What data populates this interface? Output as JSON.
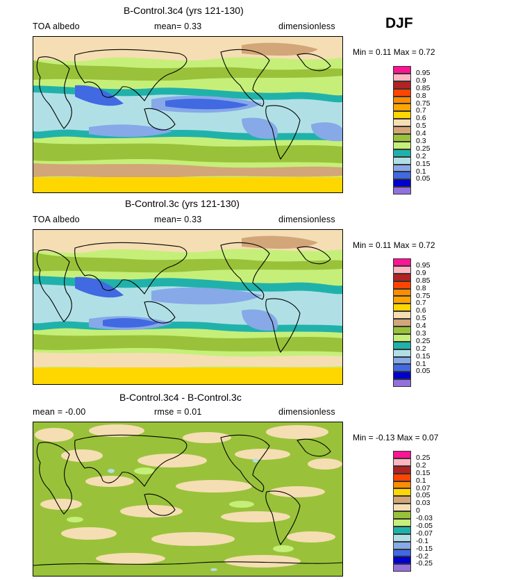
{
  "season": "DJF",
  "panels": [
    {
      "id": "p1",
      "title": "B-Control.3c4 (yrs 121-130)",
      "header_left": "TOA albedo",
      "header_mid": "mean=    0.33",
      "header_right": "dimensionless",
      "min_max": "Min =    0.11  Max =    0.72",
      "legend": [
        "0.95",
        "0.9",
        "0.85",
        "0.8",
        "0.75",
        "0.7",
        "0.6",
        "0.5",
        "0.4",
        "0.3",
        "0.25",
        "0.2",
        "0.15",
        "0.1",
        "0.05"
      ],
      "colors": [
        "#ff1493",
        "#ffb6c1",
        "#b22222",
        "#ff4500",
        "#ff8c00",
        "#ffa500",
        "#ffd700",
        "#f5deb3",
        "#d2a679",
        "#99c23a",
        "#c6ef79",
        "#20b2aa",
        "#b0e0e6",
        "#87a9e8",
        "#4169e1",
        "#0000cd",
        "#9370db"
      ]
    },
    {
      "id": "p2",
      "title": "B-Control.3c (yrs 121-130)",
      "header_left": "TOA albedo",
      "header_mid": "mean=    0.33",
      "header_right": "dimensionless",
      "min_max": "Min =    0.11  Max =    0.72",
      "legend": [
        "0.95",
        "0.9",
        "0.85",
        "0.8",
        "0.75",
        "0.7",
        "0.6",
        "0.5",
        "0.4",
        "0.3",
        "0.25",
        "0.2",
        "0.15",
        "0.1",
        "0.05"
      ],
      "colors": [
        "#ff1493",
        "#ffb6c1",
        "#b22222",
        "#ff4500",
        "#ff8c00",
        "#ffa500",
        "#ffd700",
        "#f5deb3",
        "#d2a679",
        "#99c23a",
        "#c6ef79",
        "#20b2aa",
        "#b0e0e6",
        "#87a9e8",
        "#4169e1",
        "#0000cd",
        "#9370db"
      ]
    },
    {
      "id": "p3",
      "title": "B-Control.3c4 - B-Control.3c",
      "header_left": "mean =   -0.00",
      "header_mid": "rmse =    0.01",
      "header_right": "dimensionless",
      "min_max": "Min =   -0.13  Max =    0.07",
      "legend": [
        "0.25",
        "0.2",
        "0.15",
        "0.1",
        "0.07",
        "0.05",
        "0.03",
        "0",
        "-0.03",
        "-0.05",
        "-0.07",
        "-0.1",
        "-0.15",
        "-0.2",
        "-0.25"
      ],
      "colors": [
        "#ff1493",
        "#ffb6c1",
        "#b22222",
        "#ff4500",
        "#ff8c00",
        "#ffd700",
        "#d2a679",
        "#f5deb3",
        "#99c23a",
        "#c6ef79",
        "#20b2aa",
        "#b0e0e6",
        "#87a9e8",
        "#4169e1",
        "#0000cd",
        "#9370db"
      ]
    }
  ]
}
